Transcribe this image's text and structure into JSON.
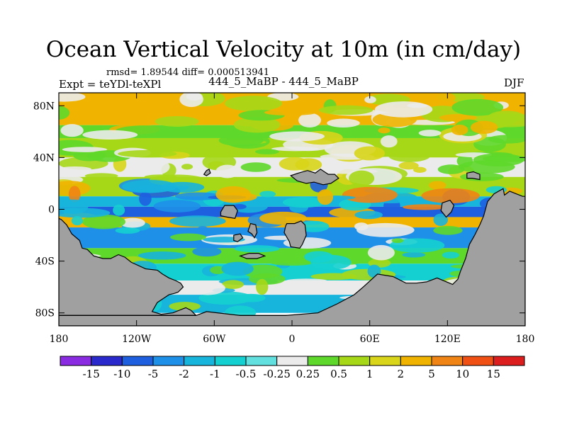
{
  "header": {
    "title": "Ocean Vertical Velocity at 10m (in cm/day)",
    "stats": "rmsd= 1.89544 diff= 0.000513941",
    "expt": "Expt = teYDl-teXPl",
    "case": "444_5_MaBP - 444_5_MaBP",
    "season": "DJF"
  },
  "chart_data": {
    "type": "heatmap",
    "title": "Ocean Vertical Velocity at 10m (in cm/day)",
    "units": "cm/day",
    "xlabel": "",
    "ylabel": "",
    "xlim": [
      -180,
      180
    ],
    "ylim": [
      -90,
      90
    ],
    "x_ticks": [
      {
        "value": -180,
        "label": "180"
      },
      {
        "value": -120,
        "label": "120W"
      },
      {
        "value": -60,
        "label": "60W"
      },
      {
        "value": 0,
        "label": "0"
      },
      {
        "value": 60,
        "label": "60E"
      },
      {
        "value": 120,
        "label": "120E"
      },
      {
        "value": 180,
        "label": "180"
      }
    ],
    "y_ticks": [
      {
        "value": 80,
        "label": "80N"
      },
      {
        "value": 40,
        "label": "40N"
      },
      {
        "value": 0,
        "label": "0"
      },
      {
        "value": -40,
        "label": "40S"
      },
      {
        "value": -80,
        "label": "80S"
      }
    ],
    "contour_levels": [
      "-15",
      "-10",
      "-5",
      "-2",
      "-1",
      "-0.5",
      "-0.25",
      "0.25",
      "0.5",
      "1",
      "2",
      "5",
      "10",
      "15"
    ],
    "colors": [
      "#8a2be2",
      "#2a2acc",
      "#1e5fe0",
      "#1e90e8",
      "#17b4dc",
      "#15d0d0",
      "#62e0e0",
      "#ebebeb",
      "#5ed82a",
      "#a6d817",
      "#d8d51a",
      "#f0b400",
      "#f08414",
      "#f05014",
      "#dc1e1e"
    ],
    "land_color": "#a0a0a0",
    "ocean_bands": [
      {
        "lat": [
          65,
          90
        ],
        "level": 11
      },
      {
        "lat": [
          55,
          65
        ],
        "level": 8
      },
      {
        "lat": [
          40,
          55
        ],
        "level": 9
      },
      {
        "lat": [
          25,
          40
        ],
        "level": 7
      },
      {
        "lat": [
          10,
          25
        ],
        "level": 9
      },
      {
        "lat": [
          2,
          10
        ],
        "level": 4
      },
      {
        "lat": [
          -6,
          2
        ],
        "level": 2
      },
      {
        "lat": [
          -14,
          -6
        ],
        "level": 11
      },
      {
        "lat": [
          -30,
          -14
        ],
        "level": 3
      },
      {
        "lat": [
          -42,
          -30
        ],
        "level": 8
      },
      {
        "lat": [
          -55,
          -42
        ],
        "level": 5
      },
      {
        "lat": [
          -66,
          -55
        ],
        "level": 7
      },
      {
        "lat": [
          -80,
          -66
        ],
        "level": 4
      }
    ]
  }
}
